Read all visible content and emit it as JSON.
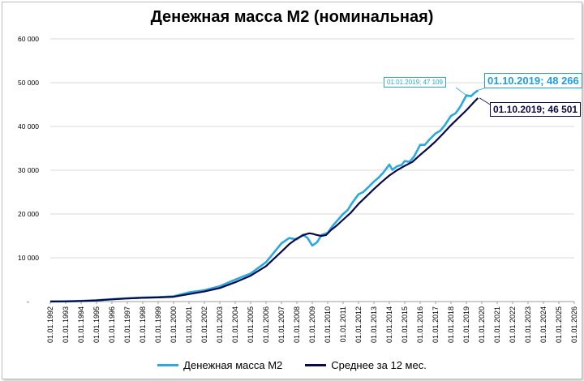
{
  "chart_data": {
    "type": "line",
    "title": "Денежная масса М2 (номинальная)",
    "xlabel": "",
    "ylabel": "",
    "ylim": [
      0,
      60000
    ],
    "yticks": [
      "-",
      "10 000",
      "20 000",
      "30 000",
      "40 000",
      "50 000",
      "60 000"
    ],
    "xticks": [
      "01.01.1992",
      "01.01.1993",
      "01.01.1994",
      "01.01.1995",
      "01.01.1996",
      "01.01.1997",
      "01.01.1998",
      "01.01.1999",
      "01.01.2000",
      "01.01.2001",
      "01.01.2002",
      "01.01.2003",
      "01.01.2004",
      "01.01.2005",
      "01.01.2006",
      "01.01.2007",
      "01.01.2008",
      "01.01.2009",
      "01.01.2010",
      "01.01.2011",
      "01.01.2012",
      "01.01.2013",
      "01.01.2014",
      "01.01.2015",
      "01.01.2016",
      "01.01.2017",
      "01.01.2018",
      "01.01.2019",
      "01.01.2020",
      "01.01.2021",
      "01.01.2022",
      "01.01.2023",
      "01.01.2024",
      "01.01.2025",
      "01.01.2026"
    ],
    "grid": "horizontal",
    "legend_position": "bottom",
    "series": [
      {
        "name": "Денежная масса М2",
        "color": "#29a9e0",
        "x": [
          1992.0,
          1993.0,
          1994.0,
          1995.0,
          1996.0,
          1997.0,
          1998.0,
          1999.0,
          2000.0,
          2001.0,
          2002.0,
          2003.0,
          2004.0,
          2005.0,
          2006.0,
          2007.0,
          2007.5,
          2008.0,
          2008.4,
          2008.7,
          2009.0,
          2009.3,
          2009.6,
          2010.0,
          2010.3,
          2010.6,
          2011.0,
          2011.3,
          2011.6,
          2012.0,
          2012.3,
          2012.6,
          2013.0,
          2013.3,
          2013.6,
          2014.0,
          2014.2,
          2014.5,
          2014.8,
          2015.0,
          2015.3,
          2015.6,
          2016.0,
          2016.3,
          2016.6,
          2017.0,
          2017.3,
          2017.6,
          2018.0,
          2018.3,
          2018.6,
          2019.0,
          2019.3,
          2019.5,
          2019.75
        ],
        "y": [
          20,
          50,
          150,
          300,
          550,
          750,
          900,
          1000,
          1200,
          2100,
          2600,
          3500,
          5000,
          6400,
          9000,
          13300,
          14500,
          14200,
          15300,
          14500,
          12800,
          13500,
          15200,
          15700,
          17200,
          18400,
          20000,
          20900,
          22600,
          24500,
          25000,
          26000,
          27400,
          28300,
          29400,
          31300,
          30100,
          30900,
          31200,
          32100,
          31900,
          33100,
          35800,
          35800,
          37000,
          38400,
          39000,
          40300,
          42400,
          43000,
          44500,
          47109,
          46900,
          47600,
          48266
        ]
      },
      {
        "name": "Среднее за 12 мес.",
        "color": "#0a0a4a",
        "x": [
          1992.0,
          1993.0,
          1994.0,
          1995.0,
          1996.0,
          1997.0,
          1998.0,
          1999.0,
          2000.0,
          2001.0,
          2002.0,
          2003.0,
          2004.0,
          2005.0,
          2006.0,
          2007.0,
          2007.5,
          2008.0,
          2008.5,
          2008.8,
          2009.0,
          2009.3,
          2009.6,
          2009.9,
          2010.2,
          2010.6,
          2011.0,
          2011.5,
          2012.0,
          2012.5,
          2013.0,
          2013.5,
          2014.0,
          2014.5,
          2015.0,
          2015.5,
          2016.0,
          2016.5,
          2017.0,
          2017.5,
          2018.0,
          2018.5,
          2019.0,
          2019.5,
          2019.75
        ],
        "y": [
          10,
          40,
          120,
          250,
          500,
          700,
          850,
          950,
          1100,
          1700,
          2300,
          3100,
          4400,
          5900,
          8100,
          11400,
          13100,
          14400,
          15300,
          15600,
          15500,
          15200,
          15000,
          15200,
          16300,
          17400,
          18700,
          20300,
          22300,
          24000,
          25700,
          27300,
          28800,
          30000,
          31000,
          31900,
          33500,
          35000,
          36600,
          38400,
          40300,
          42000,
          43700,
          45600,
          46501
        ]
      }
    ],
    "annotations": [
      {
        "text": "01.01.2019;  47 109",
        "series": 0,
        "x": 2019.0,
        "y": 47109
      },
      {
        "text": "01.10.2019;  48 266",
        "series": 0,
        "x": 2019.75,
        "y": 48266
      },
      {
        "text": "01.10.2019; 46 501",
        "series": 1,
        "x": 2019.75,
        "y": 46501
      }
    ]
  }
}
